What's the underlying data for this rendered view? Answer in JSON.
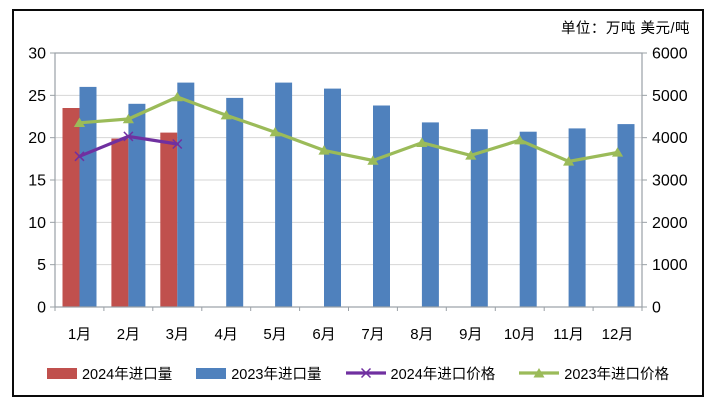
{
  "unit_label": "单位：万吨  美元/吨",
  "chart_data": {
    "type": "bar",
    "subtype": "combo-bar-line-dual-axis",
    "categories": [
      "1月",
      "2月",
      "3月",
      "4月",
      "5月",
      "6月",
      "7月",
      "8月",
      "9月",
      "10月",
      "11月",
      "12月"
    ],
    "series": [
      {
        "name": "2024年进口量",
        "kind": "bar",
        "axis": "left",
        "color": "#C0504D",
        "values": [
          23.5,
          19.9,
          20.6
        ]
      },
      {
        "name": "2023年进口量",
        "kind": "bar",
        "axis": "left",
        "color": "#4F81BD",
        "values": [
          26.0,
          24.0,
          26.5,
          24.7,
          26.5,
          25.8,
          23.8,
          21.8,
          21.0,
          20.7,
          21.1,
          21.6
        ]
      },
      {
        "name": "2024年进口价格",
        "kind": "line",
        "marker": "x",
        "axis": "right",
        "color": "#7030A0",
        "values": [
          3560,
          4030,
          3850
        ]
      },
      {
        "name": "2023年进口价格",
        "kind": "line",
        "marker": "triangle",
        "axis": "right",
        "color": "#9BBB59",
        "values": [
          4350,
          4440,
          4960,
          4530,
          4130,
          3700,
          3460,
          3880,
          3580,
          3940,
          3440,
          3650
        ]
      }
    ],
    "left_axis": {
      "min": 0,
      "max": 30,
      "step": 5,
      "ticks": [
        0,
        5,
        10,
        15,
        20,
        25,
        30
      ],
      "unit": "万吨"
    },
    "right_axis": {
      "min": 0,
      "max": 6000,
      "step": 1000,
      "ticks": [
        0,
        1000,
        2000,
        3000,
        4000,
        5000,
        6000
      ],
      "unit": "美元/吨"
    },
    "title": "",
    "grid": true,
    "legend_position": "bottom",
    "colors": {
      "grid": "#d6d6d6",
      "axis": "#9aa0a6",
      "text": "#000000",
      "frame": "#0a0a0a",
      "background": "#ffffff"
    }
  }
}
